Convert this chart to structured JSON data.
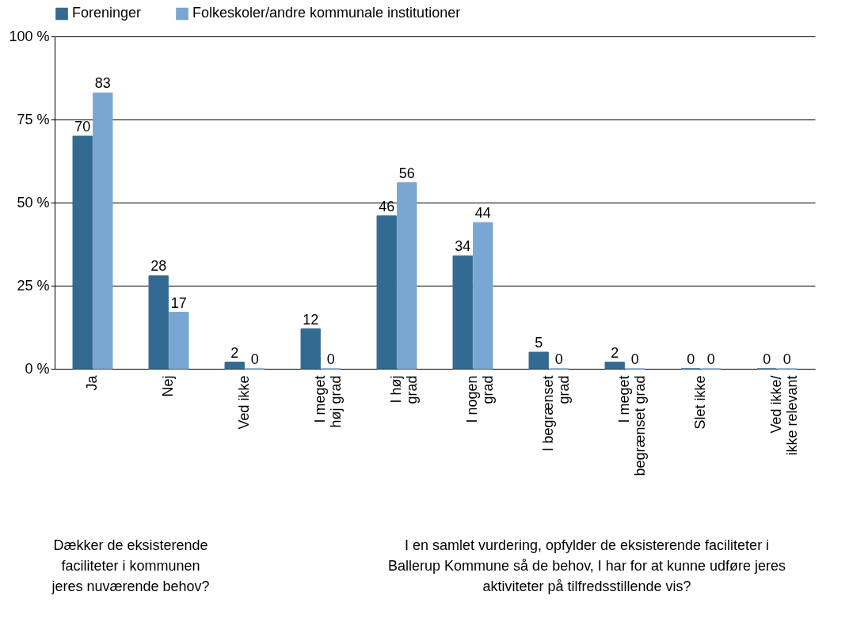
{
  "chart_data": {
    "type": "bar",
    "categories": [
      "Ja",
      "Nej",
      "Ved ikke",
      "I meget\nhøj grad",
      "I høj\ngrad",
      "I nogen\ngrad",
      "I begrænset\ngrad",
      "I meget\nbegrænset grad",
      "Slet ikke",
      "Ved ikke/\nikke relevant"
    ],
    "series": [
      {
        "name": "Foreninger",
        "color": "#336a92",
        "values": [
          70,
          28,
          2,
          12,
          46,
          34,
          5,
          2,
          0,
          0
        ]
      },
      {
        "name": "Folkeskoler/andre kommunale institutioner",
        "color": "#7aa7d1",
        "values": [
          83,
          17,
          0,
          0,
          56,
          44,
          0,
          0,
          0,
          0
        ]
      }
    ],
    "ylim": [
      0,
      100
    ],
    "yticks": [
      {
        "value": 0,
        "label": "0 %"
      },
      {
        "value": 25,
        "label": "25 %"
      },
      {
        "value": 50,
        "label": "50 %"
      },
      {
        "value": 75,
        "label": "75 %"
      },
      {
        "value": 100,
        "label": "100 %"
      }
    ],
    "grid": "y",
    "legend": "top",
    "data_labels": true,
    "annotations": [
      "Dækker de eksisterende\nfaciliteter i kommunen\njeres nuværende behov?",
      "I en samlet vurdering, opfylder de eksisterende faciliteter i\nBallerup Kommune så de behov, I har for at kunne udføre jeres\naktiviteter på tilfredsstillende vis?"
    ]
  }
}
